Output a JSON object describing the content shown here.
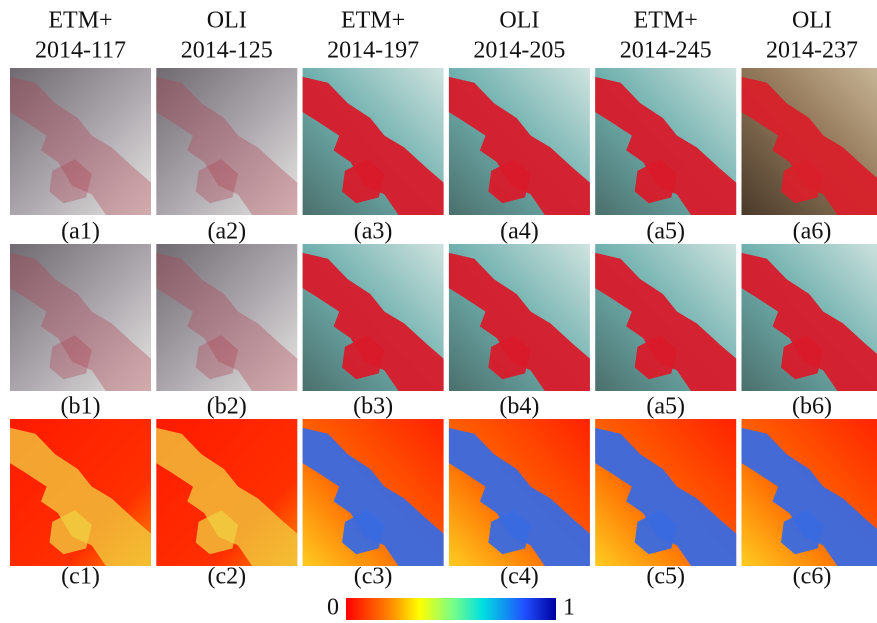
{
  "columns": [
    {
      "sensor": "ETM+",
      "date": "2014-117"
    },
    {
      "sensor": "OLI",
      "date": "2014-125"
    },
    {
      "sensor": "ETM+",
      "date": "2014-197"
    },
    {
      "sensor": "OLI",
      "date": "2014-205"
    },
    {
      "sensor": "ETM+",
      "date": "2014-245"
    },
    {
      "sensor": "OLI",
      "date": "2014-237"
    }
  ],
  "rows": [
    [
      "(a1)",
      "(a2)",
      "(a3)",
      "(a4)",
      "(a5)",
      "(a6)"
    ],
    [
      "(b1)",
      "(b2)",
      "(b3)",
      "(b4)",
      "(a5)",
      "(b6)"
    ],
    [
      "(c1)",
      "(c2)",
      "(c3)",
      "(c4)",
      "(c5)",
      "(c6)"
    ]
  ],
  "colorbar": {
    "min": 0,
    "max": 1
  }
}
